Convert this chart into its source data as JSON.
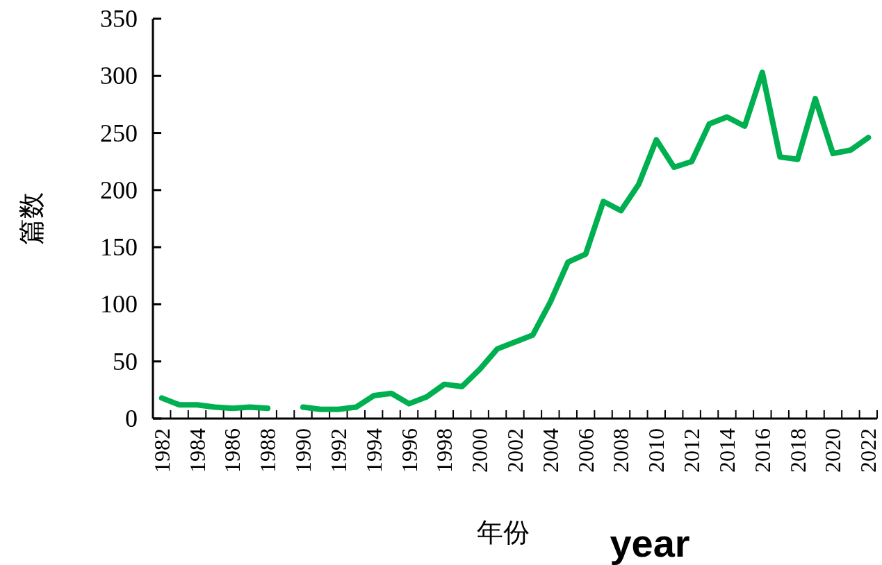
{
  "chart_data": {
    "type": "line",
    "xlabel": "年份",
    "ylabel": "篇数",
    "annotations": [
      "year"
    ],
    "categories": [
      "1982",
      null,
      "1984",
      null,
      "1986",
      null,
      "1988",
      null,
      "1990",
      null,
      "1992",
      null,
      "1994",
      null,
      "1996",
      null,
      "1998",
      null,
      "2000",
      null,
      "2002",
      null,
      "2004",
      null,
      "2006",
      null,
      "2008",
      null,
      "2010",
      null,
      "2012",
      null,
      "2014",
      null,
      "2016",
      null,
      "2018",
      null,
      "2020",
      null,
      "2022"
    ],
    "series": [
      {
        "color": "#00b050",
        "values": [
          18,
          12,
          12,
          10,
          9,
          10,
          9,
          null,
          10,
          8,
          8,
          10,
          20,
          22,
          13,
          19,
          30,
          28,
          43,
          61,
          67,
          73,
          102,
          137,
          144,
          190,
          182,
          205,
          244,
          220,
          225,
          258,
          264,
          256,
          303,
          229,
          227,
          280,
          232,
          235,
          246
        ]
      }
    ],
    "ylim": [
      0,
      350
    ],
    "yticks": [
      0,
      50,
      100,
      150,
      200,
      250,
      300,
      350
    ],
    "marker": "none",
    "line_style": "solid"
  }
}
